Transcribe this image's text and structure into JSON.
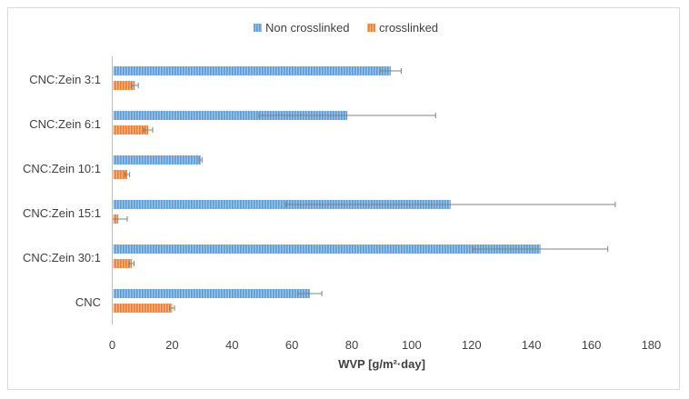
{
  "chart_data": {
    "type": "bar",
    "orientation": "horizontal",
    "title": "",
    "xlabel": "WVP [g/m²·day]",
    "ylabel": "",
    "xlim": [
      0,
      180
    ],
    "xticks": [
      0,
      20,
      40,
      60,
      80,
      100,
      120,
      140,
      160,
      180
    ],
    "grid": false,
    "legend_position": "top",
    "categories": [
      "CNC:Zein 3:1",
      "CNC:Zein 6:1",
      "CNC:Zein 10:1",
      "CNC:Zein 15:1",
      "CNC:Zein 30:1",
      "CNC"
    ],
    "series": [
      {
        "name": "Non crosslinked",
        "color": "#5b9bd5",
        "values": [
          93,
          78.5,
          29.5,
          113,
          143,
          66
        ],
        "errors": [
          3.5,
          29.5,
          0.5,
          55,
          22.5,
          4
        ]
      },
      {
        "name": "crosslinked",
        "color": "#ed7d31",
        "values": [
          7.5,
          12,
          5,
          2,
          6.5,
          20
        ],
        "errors": [
          1.2,
          1.5,
          0.8,
          3,
          0.8,
          0.8
        ]
      }
    ]
  }
}
